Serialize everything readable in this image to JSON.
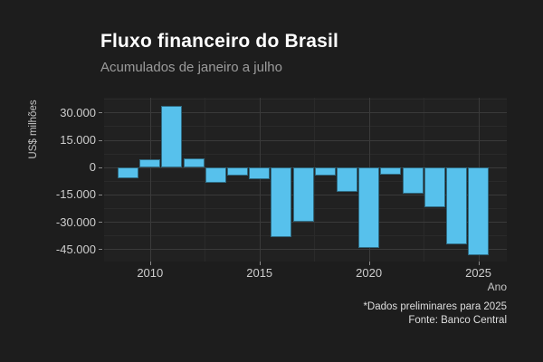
{
  "chart_data": {
    "type": "bar",
    "title": "Fluxo financeiro do Brasil",
    "subtitle": "Acumulados de janeiro a julho",
    "xlabel": "Ano",
    "ylabel": "US$ milhões",
    "categories": [
      2009,
      2010,
      2011,
      2012,
      2013,
      2014,
      2015,
      2016,
      2017,
      2018,
      2019,
      2020,
      2021,
      2022,
      2023,
      2024,
      2025
    ],
    "values": [
      -6300,
      4300,
      33500,
      4700,
      -8400,
      -4600,
      -6700,
      -38200,
      -30000,
      -4700,
      -13700,
      -44400,
      -4300,
      -14600,
      -22200,
      -42400,
      -48400
    ],
    "unit": "US$ milhões",
    "ylim": [
      -51800,
      38100
    ],
    "xlim": [
      2007.9,
      2026.3
    ],
    "yticks_major": [
      30000,
      15000,
      0,
      -15000,
      -30000,
      -45000
    ],
    "ytick_labels": [
      "30.000",
      "15.000",
      "0",
      "-15.000",
      "-30.000",
      "-45.000"
    ],
    "yticks_minor": [
      37500,
      22500,
      7500,
      -7500,
      -22500,
      -37500
    ],
    "xticks_major": [
      2010,
      2015,
      2020,
      2025
    ],
    "xtick_labels": [
      "2010",
      "2015",
      "2020",
      "2025"
    ],
    "xticks_minor": [
      2012.5,
      2017.5,
      2022.5
    ],
    "bar_color": "#57c1ec",
    "background_color": "#1d1d1d",
    "grid": "on",
    "legend": "none"
  },
  "footer": {
    "note": "*Dados preliminares para 2025",
    "source": "Fonte: Banco Central"
  }
}
